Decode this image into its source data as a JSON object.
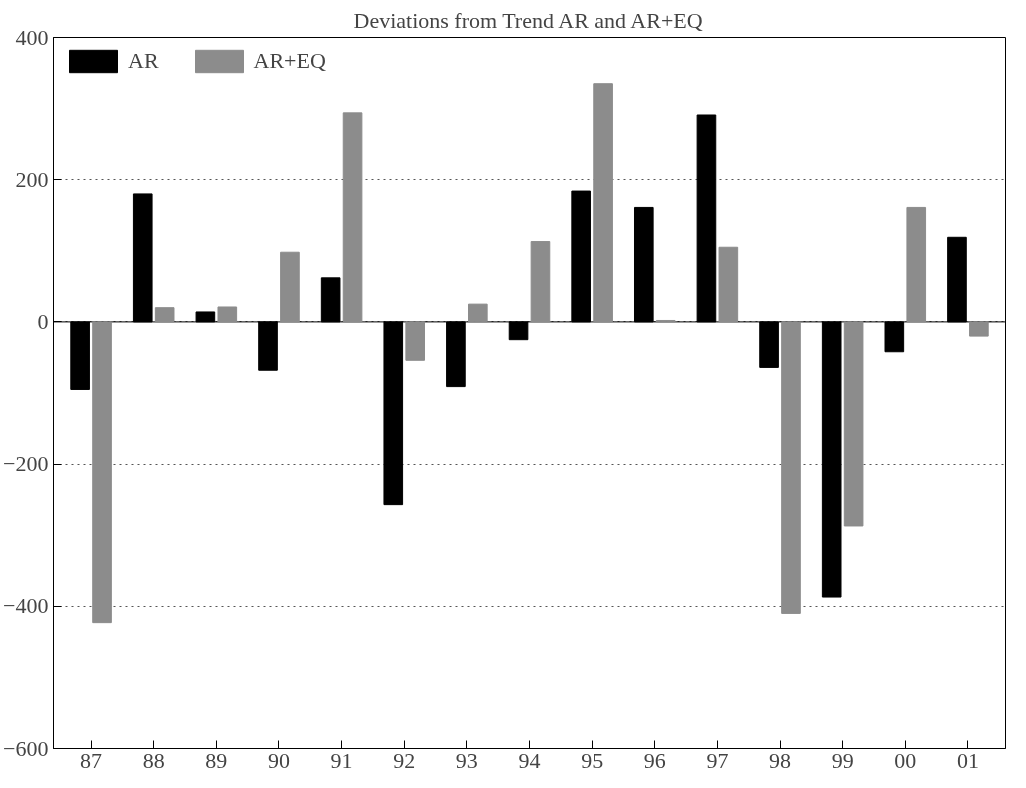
{
  "chart_data": {
    "type": "bar",
    "title": "Deviations from Trend AR and AR+EQ",
    "categories": [
      "87",
      "88",
      "89",
      "90",
      "91",
      "92",
      "93",
      "94",
      "95",
      "96",
      "97",
      "98",
      "99",
      "00",
      "01"
    ],
    "series": [
      {
        "name": "AR",
        "color": "#000000",
        "values": [
          -95,
          180,
          14,
          -68,
          62,
          -257,
          -91,
          -25,
          184,
          161,
          291,
          -64,
          -387,
          -42,
          119
        ]
      },
      {
        "name": "AR+EQ",
        "color": "#8c8c8c",
        "values": [
          -423,
          20,
          21,
          98,
          294,
          -54,
          25,
          113,
          335,
          2,
          105,
          -410,
          -287,
          161,
          -20
        ]
      }
    ],
    "ylim": [
      -600,
      400
    ],
    "yticks": [
      -600,
      -400,
      -200,
      0,
      200,
      400
    ],
    "grid": "y",
    "legend": "top left"
  }
}
